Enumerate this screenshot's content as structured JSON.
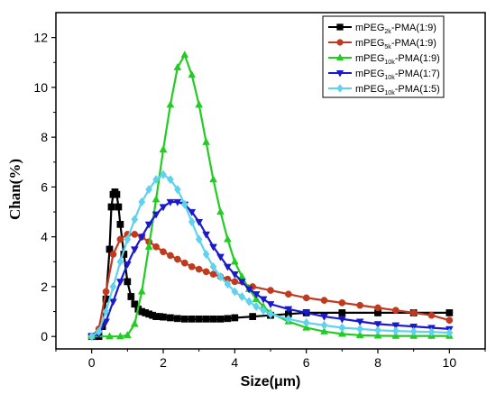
{
  "chart_data": {
    "type": "line",
    "xlabel": "Size(μm)",
    "ylabel": "Chan(%)",
    "xlim": [
      -1,
      11
    ],
    "ylim": [
      -0.5,
      13
    ],
    "xticks": [
      0,
      2,
      4,
      6,
      8,
      10
    ],
    "yticks": [
      0,
      2,
      4,
      6,
      8,
      10,
      12
    ],
    "grid": false,
    "legend_position": "top-right",
    "series": [
      {
        "name": "mPEG2k-PMA(1:9)",
        "label_main": "mPEG",
        "label_sub": "2k",
        "label_suffix": "-PMA(1:9)",
        "color": "#000000",
        "marker": "square",
        "x": [
          0,
          0.1,
          0.2,
          0.3,
          0.4,
          0.5,
          0.55,
          0.6,
          0.65,
          0.7,
          0.75,
          0.8,
          0.9,
          1.0,
          1.1,
          1.2,
          1.3,
          1.4,
          1.5,
          1.6,
          1.7,
          1.8,
          1.9,
          2.0,
          2.2,
          2.4,
          2.6,
          2.8,
          3.0,
          3.2,
          3.4,
          3.6,
          3.8,
          4.0,
          4.5,
          5.0,
          5.5,
          6.0,
          7.0,
          8.0,
          9.0,
          10.0
        ],
        "y": [
          0,
          0,
          0,
          0.4,
          1.5,
          3.5,
          5.2,
          5.7,
          5.8,
          5.7,
          5.2,
          4.5,
          3.3,
          2.2,
          1.6,
          1.3,
          1.1,
          1.0,
          0.95,
          0.9,
          0.85,
          0.8,
          0.8,
          0.78,
          0.75,
          0.72,
          0.7,
          0.7,
          0.7,
          0.7,
          0.7,
          0.7,
          0.72,
          0.75,
          0.8,
          0.85,
          0.9,
          0.95,
          0.95,
          0.95,
          0.95,
          0.95
        ]
      },
      {
        "name": "mPEG5k-PMA(1:9)",
        "label_main": "mPEG",
        "label_sub": "5k",
        "label_suffix": "-PMA(1:9)",
        "color": "#c03a1f",
        "marker": "circle",
        "x": [
          0,
          0.2,
          0.4,
          0.6,
          0.8,
          1.0,
          1.2,
          1.4,
          1.6,
          1.8,
          2.0,
          2.2,
          2.4,
          2.6,
          2.8,
          3.0,
          3.2,
          3.4,
          3.6,
          3.8,
          4.0,
          4.5,
          5.0,
          5.5,
          6.0,
          6.5,
          7.0,
          7.5,
          8.0,
          8.5,
          9.0,
          9.5,
          10.0
        ],
        "y": [
          0,
          0.3,
          1.8,
          3.3,
          3.9,
          4.1,
          4.1,
          4.0,
          3.8,
          3.6,
          3.4,
          3.25,
          3.1,
          2.95,
          2.8,
          2.7,
          2.6,
          2.5,
          2.4,
          2.3,
          2.2,
          2.0,
          1.85,
          1.7,
          1.55,
          1.45,
          1.35,
          1.25,
          1.15,
          1.05,
          0.95,
          0.85,
          0.65
        ]
      },
      {
        "name": "mPEG10k-PMA(1:9)",
        "label_main": "mPEG",
        "label_sub": "10k",
        "label_suffix": "-PMA(1:9)",
        "color": "#22cc22",
        "marker": "triangle-up",
        "x": [
          0,
          0.5,
          0.8,
          1.0,
          1.2,
          1.4,
          1.6,
          1.8,
          2.0,
          2.2,
          2.4,
          2.6,
          2.8,
          3.0,
          3.2,
          3.4,
          3.6,
          3.8,
          4.0,
          4.2,
          4.4,
          4.6,
          4.8,
          5.0,
          5.5,
          6.0,
          6.5,
          7.0,
          7.5,
          8.0,
          8.5,
          9.0,
          9.5,
          10.0
        ],
        "y": [
          0,
          0,
          0,
          0.05,
          0.5,
          1.8,
          3.6,
          5.5,
          7.5,
          9.3,
          10.8,
          11.3,
          10.5,
          9.3,
          7.8,
          6.3,
          5.0,
          3.9,
          3.0,
          2.4,
          1.9,
          1.5,
          1.2,
          0.95,
          0.6,
          0.35,
          0.2,
          0.1,
          0.05,
          0.03,
          0.02,
          0.02,
          0.02,
          0.02
        ]
      },
      {
        "name": "mPEG10k-PMA(1:7)",
        "label_main": "mPEG",
        "label_sub": "10k",
        "label_suffix": "-PMA(1:7)",
        "color": "#1a1acc",
        "marker": "triangle-down",
        "x": [
          0,
          0.2,
          0.4,
          0.6,
          0.8,
          1.0,
          1.2,
          1.4,
          1.6,
          1.8,
          2.0,
          2.2,
          2.4,
          2.6,
          2.8,
          3.0,
          3.2,
          3.4,
          3.6,
          3.8,
          4.0,
          4.2,
          4.4,
          4.6,
          4.8,
          5.0,
          5.5,
          6.0,
          6.5,
          7.0,
          7.5,
          8.0,
          8.5,
          9.0,
          9.5,
          10.0
        ],
        "y": [
          0,
          0.1,
          0.6,
          1.4,
          2.2,
          2.9,
          3.5,
          4.0,
          4.5,
          4.9,
          5.2,
          5.4,
          5.4,
          5.3,
          5.0,
          4.6,
          4.1,
          3.6,
          3.2,
          2.8,
          2.5,
          2.2,
          1.9,
          1.7,
          1.5,
          1.3,
          1.1,
          0.95,
          0.8,
          0.7,
          0.6,
          0.5,
          0.45,
          0.4,
          0.35,
          0.3
        ]
      },
      {
        "name": "mPEG10k-PMA(1:5)",
        "label_main": "mPEG",
        "label_sub": "10k",
        "label_suffix": "-PMA(1:5)",
        "color": "#5fd2ee",
        "marker": "diamond",
        "x": [
          0,
          0.2,
          0.4,
          0.6,
          0.8,
          1.0,
          1.2,
          1.4,
          1.6,
          1.8,
          2.0,
          2.2,
          2.4,
          2.6,
          2.8,
          3.0,
          3.2,
          3.4,
          3.6,
          3.8,
          4.0,
          4.2,
          4.4,
          4.6,
          4.8,
          5.0,
          5.5,
          6.0,
          6.5,
          7.0,
          7.5,
          8.0,
          8.5,
          9.0,
          9.5,
          10.0
        ],
        "y": [
          0,
          0.2,
          1.0,
          2.0,
          3.0,
          3.9,
          4.7,
          5.4,
          5.9,
          6.3,
          6.5,
          6.3,
          5.9,
          5.3,
          4.6,
          3.9,
          3.3,
          2.8,
          2.4,
          2.1,
          1.8,
          1.6,
          1.4,
          1.2,
          1.05,
          0.9,
          0.7,
          0.55,
          0.45,
          0.35,
          0.3,
          0.25,
          0.22,
          0.2,
          0.18,
          0.15
        ]
      }
    ]
  }
}
